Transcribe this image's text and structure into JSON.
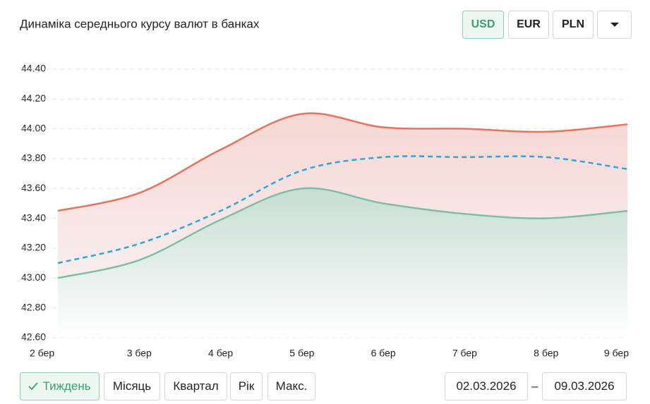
{
  "chart_data": {
    "type": "line",
    "title": "Динаміка середнього курсу валют в банках",
    "categories": [
      "2 бер",
      "3 бер",
      "4 бер",
      "5 бер",
      "6 бер",
      "7 бер",
      "8 бер",
      "9 бер"
    ],
    "series": [
      {
        "color": "#e8735d",
        "dashed": false,
        "values": [
          43.45,
          43.57,
          43.86,
          44.1,
          44.01,
          44.0,
          43.98,
          44.03
        ]
      },
      {
        "color": "#2aa7df",
        "dashed": true,
        "values": [
          43.1,
          43.23,
          43.45,
          43.72,
          43.81,
          43.81,
          43.81,
          43.73
        ]
      },
      {
        "color": "#7dbfa5",
        "dashed": false,
        "values": [
          43.0,
          43.12,
          43.39,
          43.6,
          43.5,
          43.43,
          43.4,
          43.45
        ]
      }
    ],
    "ylim": [
      42.6,
      44.4
    ],
    "yticks": [
      {
        "value": 42.6,
        "label": "42.60"
      },
      {
        "value": 42.8,
        "label": "42.80"
      },
      {
        "value": 43.0,
        "label": "43.00"
      },
      {
        "value": 43.2,
        "label": "43.20"
      },
      {
        "value": 43.4,
        "label": "43.40"
      },
      {
        "value": 43.6,
        "label": "43.60"
      },
      {
        "value": 43.8,
        "label": "43.80"
      },
      {
        "value": 44.0,
        "label": "44.00"
      },
      {
        "value": 44.2,
        "label": "44.20"
      },
      {
        "value": 44.4,
        "label": "44.40"
      }
    ],
    "grid": true
  },
  "currency_buttons": [
    "USD",
    "EUR",
    "PLN"
  ],
  "period_buttons": [
    "Тиждень",
    "Місяць",
    "Квартал",
    "Рік",
    "Макс."
  ],
  "date_from": "02.03.2026",
  "date_to": "09.03.2026"
}
